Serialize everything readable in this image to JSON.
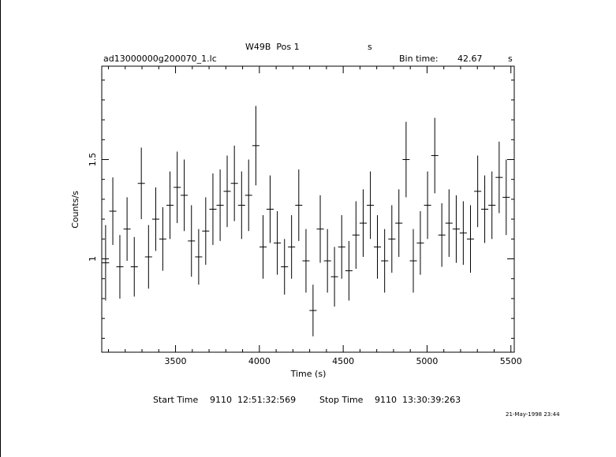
{
  "header": {
    "title_left": "W49B  Pos 1",
    "title_right": "s",
    "file_name": "ad13000000g200070_1.lc",
    "bin_time_label": "Bin time:",
    "bin_time_value": "42.67",
    "bin_time_unit": "s"
  },
  "footer": {
    "start_label": "Start Time",
    "start_value": "9110  12:51:32:569",
    "stop_label": "Stop Time",
    "stop_value": "9110  13:30:39:263",
    "date_stamp": "21-May-1998 23:44"
  },
  "chart_data": {
    "type": "scatter",
    "xlabel": "Time (s)",
    "ylabel": "Counts/s",
    "xlim": [
      3060,
      5520
    ],
    "ylim": [
      0.53,
      1.97
    ],
    "xticks": [
      3500,
      4000,
      4500,
      5000,
      5500
    ],
    "xtick_labels": [
      "3500",
      "4000",
      "4500",
      "5000",
      "5500"
    ],
    "yticks": [
      1,
      1.5
    ],
    "ytick_labels": [
      "1",
      "1.5"
    ],
    "grid": false,
    "bin_half_width": 21.3,
    "series": [
      {
        "x": [
          3083,
          3126,
          3168,
          3211,
          3254,
          3296,
          3339,
          3382,
          3424,
          3467,
          3510,
          3552,
          3595,
          3638,
          3680,
          3723,
          3766,
          3808,
          3851,
          3894,
          3936,
          3979,
          4022,
          4064,
          4107,
          4150,
          4192,
          4235,
          4278,
          4320,
          4363,
          4406,
          4448,
          4491,
          4534,
          4576,
          4619,
          4662,
          4704,
          4747,
          4790,
          4832,
          4875,
          4918,
          4960,
          5003,
          5046,
          5088,
          5131,
          5174,
          5216,
          5259,
          5302,
          5344,
          5387,
          5430,
          5472
        ],
        "y": [
          0.98,
          1.24,
          0.96,
          1.15,
          0.96,
          1.38,
          1.01,
          1.2,
          1.1,
          1.27,
          1.36,
          1.32,
          1.09,
          1.01,
          1.14,
          1.25,
          1.27,
          1.34,
          1.38,
          1.27,
          1.32,
          1.57,
          1.06,
          1.25,
          1.08,
          0.96,
          1.06,
          1.27,
          0.99,
          0.74,
          1.15,
          0.99,
          0.91,
          1.06,
          0.94,
          1.12,
          1.18,
          1.27,
          1.06,
          0.99,
          1.1,
          1.18,
          1.5,
          0.99,
          1.08,
          1.27,
          1.52,
          1.12,
          1.18,
          1.15,
          1.13,
          1.1,
          1.34,
          1.25,
          1.27,
          1.41,
          1.31
        ],
        "err": [
          0.19,
          0.17,
          0.16,
          0.16,
          0.15,
          0.18,
          0.16,
          0.16,
          0.16,
          0.17,
          0.18,
          0.18,
          0.18,
          0.14,
          0.17,
          0.18,
          0.18,
          0.18,
          0.19,
          0.17,
          0.18,
          0.2,
          0.16,
          0.17,
          0.16,
          0.14,
          0.16,
          0.18,
          0.16,
          0.13,
          0.17,
          0.16,
          0.15,
          0.16,
          0.15,
          0.17,
          0.17,
          0.17,
          0.16,
          0.16,
          0.17,
          0.17,
          0.19,
          0.16,
          0.16,
          0.17,
          0.19,
          0.16,
          0.17,
          0.17,
          0.16,
          0.17,
          0.18,
          0.17,
          0.17,
          0.18,
          0.19
        ]
      }
    ]
  }
}
